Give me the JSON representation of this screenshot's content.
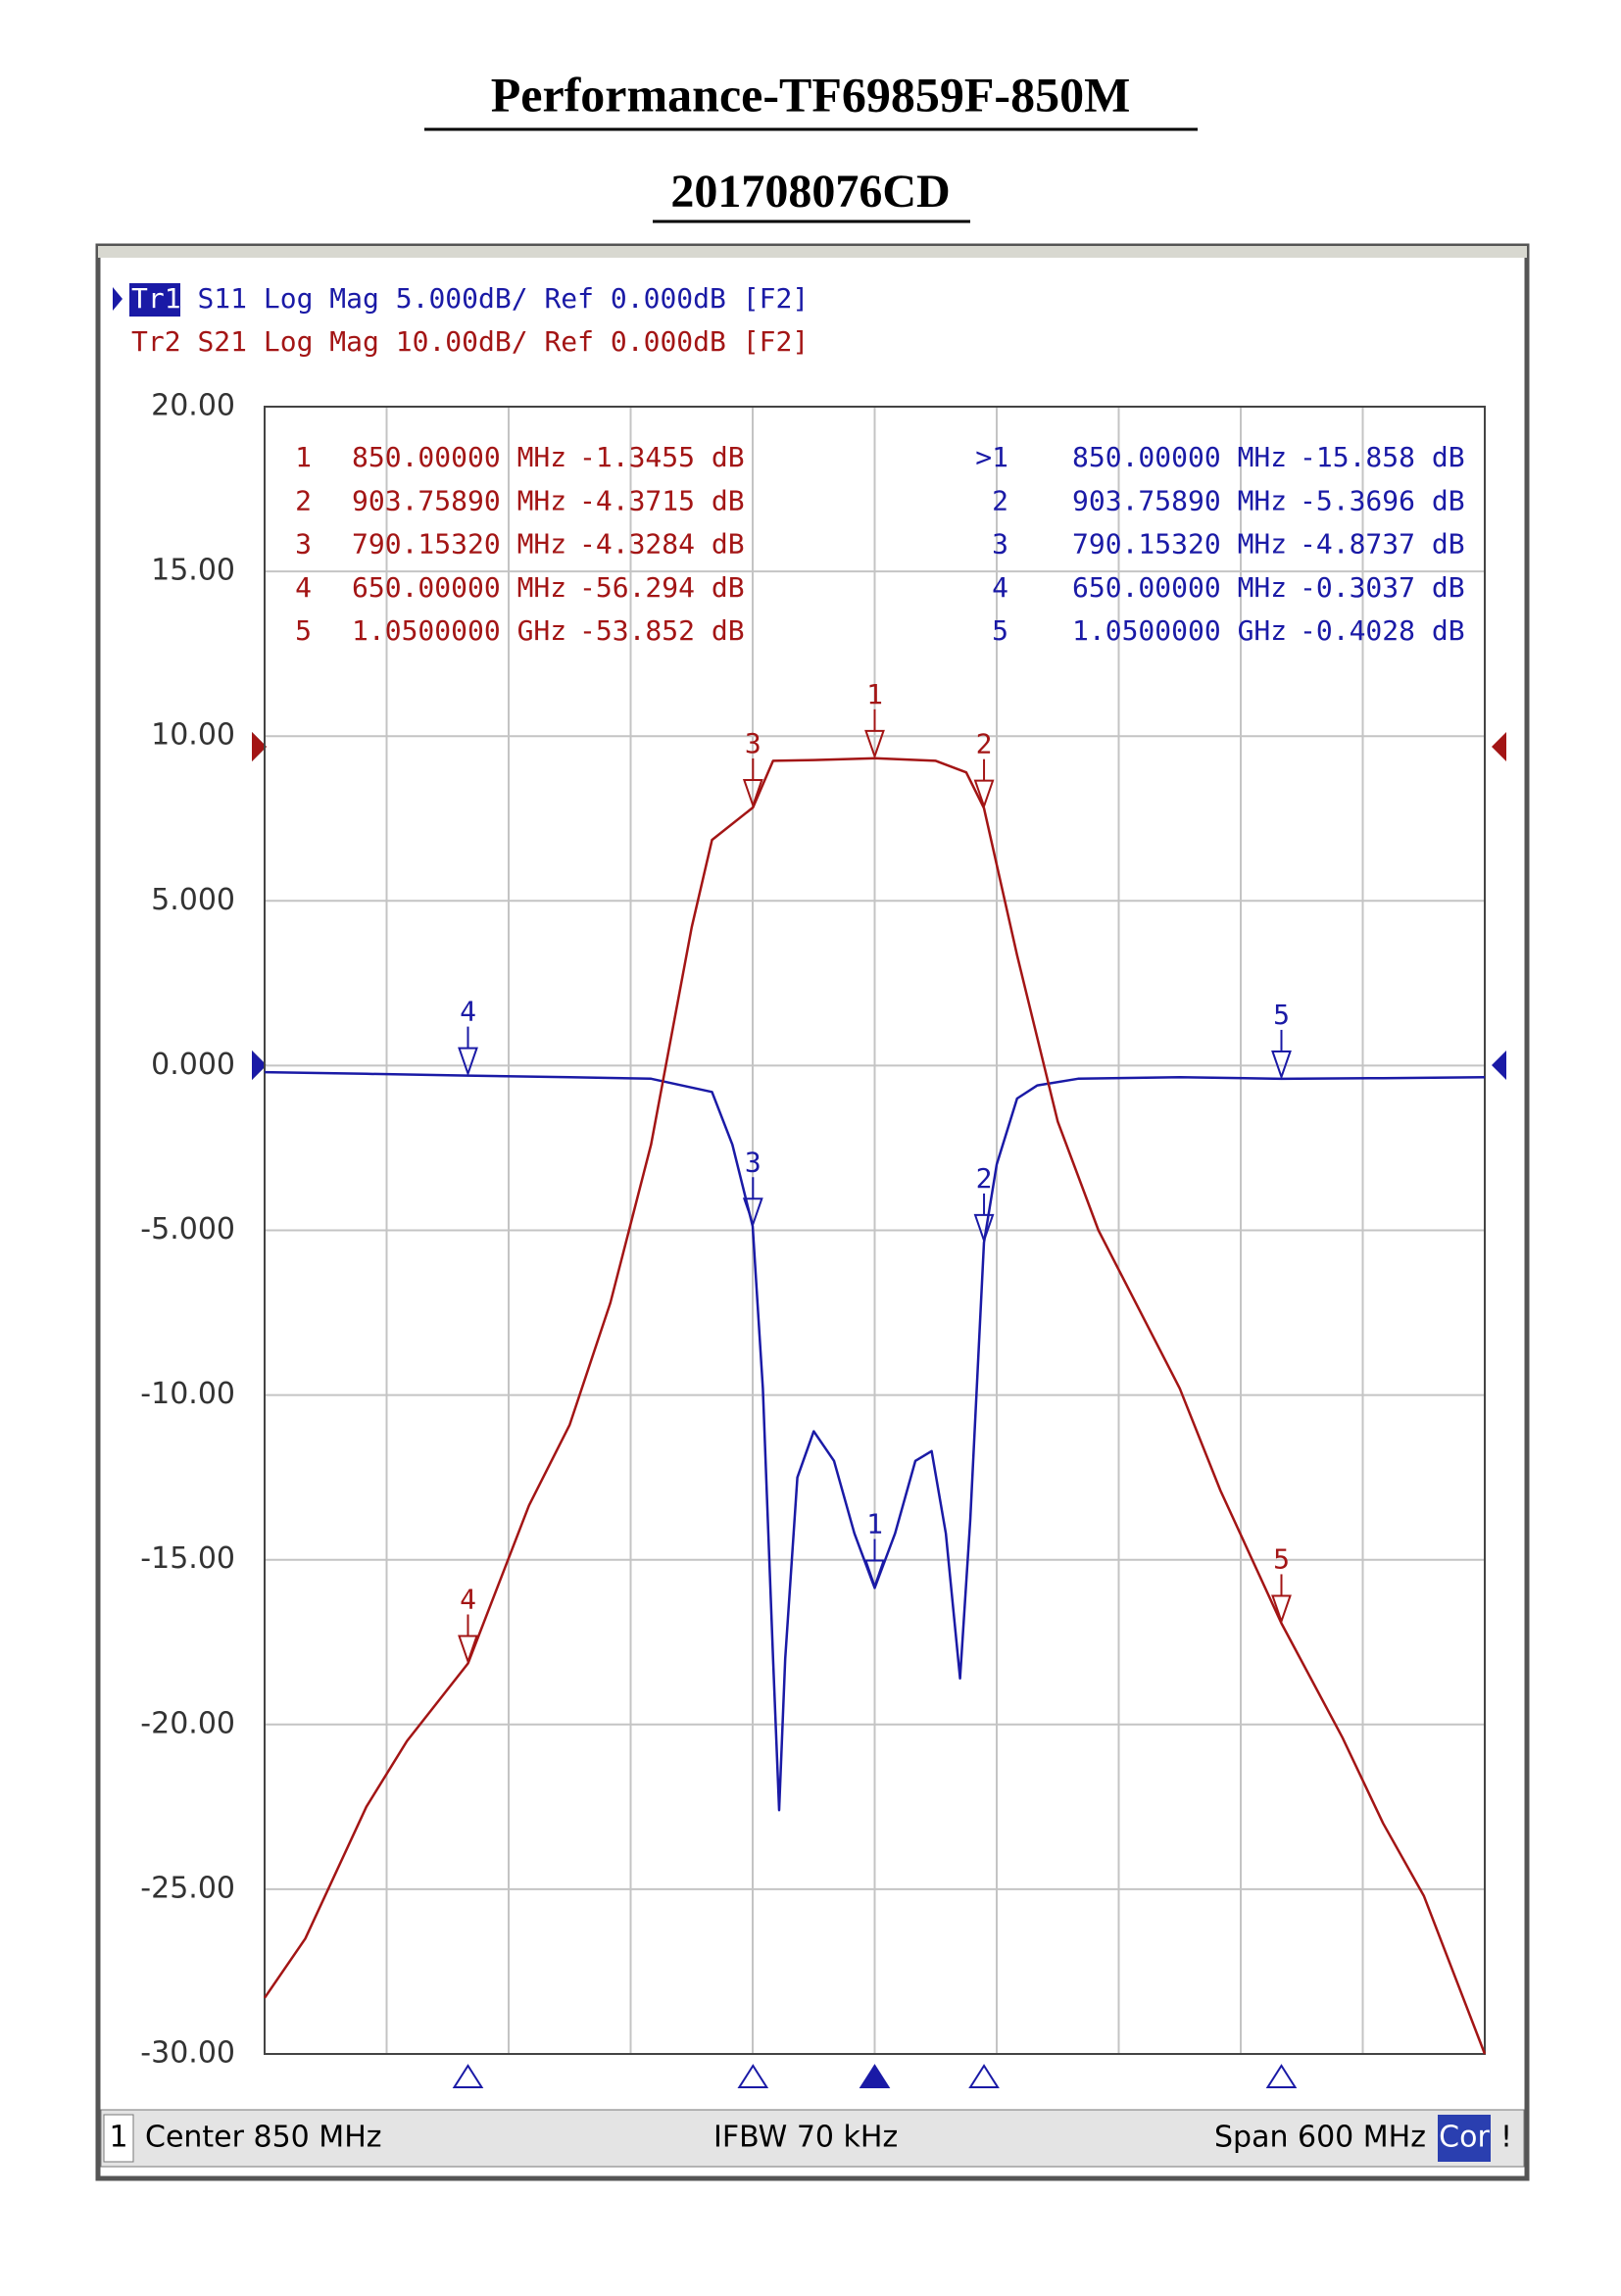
{
  "chart_data": {
    "type": "line",
    "title": "Performance-TF69859F-850M",
    "subtitle": "201708076CD",
    "xlim": [
      550,
      1150
    ],
    "xticks": [
      550,
      610,
      670,
      730,
      790,
      850,
      910,
      970,
      1030,
      1090,
      1150
    ],
    "ylim": [
      -30,
      20
    ],
    "yticks": [
      {
        "value": 20,
        "label": "20.00"
      },
      {
        "value": 15,
        "label": "15.00"
      },
      {
        "value": 10,
        "label": "10.00"
      },
      {
        "value": 5,
        "label": "5.000"
      },
      {
        "value": 0,
        "label": "0.000"
      },
      {
        "value": -5,
        "label": "-5.000"
      },
      {
        "value": -10,
        "label": "-10.00"
      },
      {
        "value": -15,
        "label": "-15.00"
      },
      {
        "value": -20,
        "label": "-20.00"
      },
      {
        "value": -25,
        "label": "-25.00"
      },
      {
        "value": -30,
        "label": "-30.00"
      }
    ],
    "y2lim": [
      -80,
      20
    ],
    "grid": true,
    "series": [
      {
        "trace": "Tr1",
        "name": "S11",
        "format": "Log Mag 5.000dB/ Ref 0.000dB [F2]",
        "color": "#1a1aa6",
        "x": [
          550,
          600,
          650,
          700,
          740,
          770,
          780,
          790,
          795,
          800,
          803,
          806,
          812,
          820,
          830,
          840,
          850,
          860,
          870,
          878,
          885,
          892,
          897,
          903.7589,
          910,
          920,
          930,
          950,
          1000,
          1050,
          1100,
          1150
        ],
        "values": [
          -0.2,
          -0.25,
          -0.3037,
          -0.35,
          -0.4,
          -0.8,
          -2.4,
          -4.8737,
          -9.8,
          -18,
          -22.6,
          -18,
          -12.5,
          -11.1,
          -12,
          -14.2,
          -15.858,
          -14.2,
          -12,
          -11.7,
          -14.2,
          -18.6,
          -13.8,
          -5.3696,
          -3.0,
          -1.0,
          -0.6,
          -0.4,
          -0.35,
          -0.4028,
          -0.38,
          -0.35
        ],
        "markers": [
          {
            "id": "1",
            "table_id": ">1",
            "x": 850,
            "x_label": "850.00000 MHz",
            "value": -15.858,
            "value_label": "-15.858 dB"
          },
          {
            "id": "2",
            "x": 903.7589,
            "x_label": "903.75890 MHz",
            "value": -5.3696,
            "value_label": "-5.3696 dB"
          },
          {
            "id": "3",
            "x": 790.1532,
            "x_label": "790.15320 MHz",
            "value": -4.8737,
            "value_label": "-4.8737 dB"
          },
          {
            "id": "4",
            "x": 650,
            "x_label": "650.00000 MHz",
            "value": -0.3037,
            "value_label": "-0.3037 dB"
          },
          {
            "id": "5",
            "x": 1050,
            "x_label": "1.0500000 GHz",
            "value": -0.4028,
            "value_label": "-0.4028 dB"
          }
        ]
      },
      {
        "trace": "Tr2",
        "name": "S21",
        "format": "Log Mag 10.00dB/ Ref 0.000dB [F2]",
        "color": "#a31515",
        "axis": "y2",
        "x": [
          550,
          570,
          600,
          620,
          650,
          680,
          700,
          720,
          740,
          760,
          770,
          790.1532,
          800,
          820,
          850,
          880,
          895,
          903.7589,
          920,
          940,
          960,
          980,
          1000,
          1020,
          1050,
          1080,
          1100,
          1120,
          1150
        ],
        "values": [
          -76.6,
          -73,
          -65,
          -61,
          -56.294,
          -46.7,
          -41.8,
          -34.4,
          -24.8,
          -11.6,
          -6.3,
          -4.3284,
          -1.5,
          -1.45,
          -1.3455,
          -1.5,
          -2.2,
          -4.3715,
          -13.3,
          -23.4,
          -30,
          -34.8,
          -39.6,
          -45.8,
          -53.852,
          -60.8,
          -66,
          -70.4,
          -80
        ],
        "markers": [
          {
            "id": "1",
            "x": 850,
            "x_label": "850.00000 MHz",
            "value": -1.3455,
            "value_label": "-1.3455 dB"
          },
          {
            "id": "2",
            "x": 903.7589,
            "x_label": "903.75890 MHz",
            "value": -4.3715,
            "value_label": "-4.3715 dB"
          },
          {
            "id": "3",
            "x": 790.1532,
            "x_label": "790.15320 MHz",
            "value": -4.3284,
            "value_label": "-4.3284 dB"
          },
          {
            "id": "4",
            "x": 650,
            "x_label": "650.00000 MHz",
            "value": -56.294,
            "value_label": "-56.294 dB"
          },
          {
            "id": "5",
            "x": 1050,
            "x_label": "1.0500000 GHz",
            "value": -53.852,
            "value_label": "-53.852 dB"
          }
        ]
      }
    ],
    "footer": {
      "channel": "1",
      "center": "Center 850 MHz",
      "ifbw": "IFBW 70 kHz",
      "span": "Span 600 MHz",
      "cor": "Cor",
      "flag": "!"
    }
  }
}
